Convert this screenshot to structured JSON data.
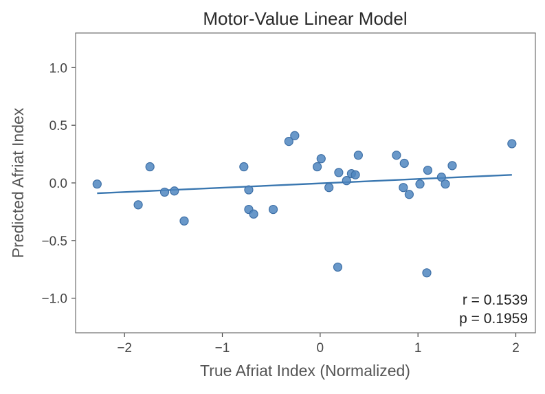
{
  "chart_data": {
    "type": "scatter",
    "title": "Motor-Value Linear Model",
    "xlabel": "True Afriat Index (Normalized)",
    "ylabel": "Predicted Afriat Index",
    "xlim": [
      -2.5,
      2.2
    ],
    "ylim": [
      -1.3,
      1.3
    ],
    "xticks": [
      -2,
      -1,
      0,
      1,
      2
    ],
    "xtick_labels": [
      "−2",
      "−1",
      "0",
      "1",
      "2"
    ],
    "yticks": [
      1.0,
      0.5,
      0.0,
      -0.5,
      -1.0
    ],
    "ytick_labels": [
      "1.0",
      "0.5",
      "0.0",
      "−0.5",
      "−1.0"
    ],
    "grid": false,
    "points": [
      {
        "x": -2.28,
        "y": -0.01
      },
      {
        "x": -1.86,
        "y": -0.19
      },
      {
        "x": -1.74,
        "y": 0.14
      },
      {
        "x": -1.59,
        "y": -0.08
      },
      {
        "x": -1.49,
        "y": -0.07
      },
      {
        "x": -1.39,
        "y": -0.33
      },
      {
        "x": -0.78,
        "y": 0.14
      },
      {
        "x": -0.73,
        "y": -0.06
      },
      {
        "x": -0.73,
        "y": -0.23
      },
      {
        "x": -0.68,
        "y": -0.27
      },
      {
        "x": -0.48,
        "y": -0.23
      },
      {
        "x": -0.32,
        "y": 0.36
      },
      {
        "x": -0.26,
        "y": 0.41
      },
      {
        "x": -0.03,
        "y": 0.14
      },
      {
        "x": 0.01,
        "y": 0.21
      },
      {
        "x": 0.09,
        "y": -0.04
      },
      {
        "x": 0.18,
        "y": -0.73
      },
      {
        "x": 0.19,
        "y": 0.09
      },
      {
        "x": 0.27,
        "y": 0.02
      },
      {
        "x": 0.32,
        "y": 0.08
      },
      {
        "x": 0.36,
        "y": 0.07
      },
      {
        "x": 0.39,
        "y": 0.24
      },
      {
        "x": 0.78,
        "y": 0.24
      },
      {
        "x": 0.85,
        "y": -0.04
      },
      {
        "x": 0.86,
        "y": 0.17
      },
      {
        "x": 0.91,
        "y": -0.1
      },
      {
        "x": 1.02,
        "y": -0.01
      },
      {
        "x": 1.09,
        "y": -0.78
      },
      {
        "x": 1.1,
        "y": 0.11
      },
      {
        "x": 1.24,
        "y": 0.05
      },
      {
        "x": 1.28,
        "y": -0.01
      },
      {
        "x": 1.35,
        "y": 0.15
      },
      {
        "x": 1.96,
        "y": 0.34
      }
    ],
    "fit_line": {
      "x": [
        -2.28,
        1.96
      ],
      "y": [
        -0.09,
        0.07
      ]
    },
    "annotations": [
      "r = 0.1539",
      "p = 0.1959"
    ],
    "colors": {
      "points": "#4f86c0",
      "line": "#3a77b0"
    }
  }
}
